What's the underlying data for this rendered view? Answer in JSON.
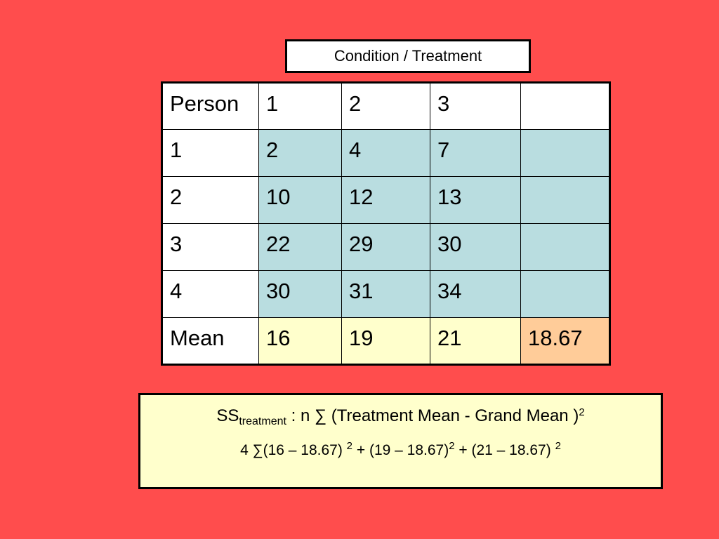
{
  "header": {
    "title": "Condition / Treatment"
  },
  "table": {
    "rows": [
      [
        "Person",
        "1",
        "2",
        "3",
        ""
      ],
      [
        "1",
        "2",
        "4",
        "7",
        ""
      ],
      [
        "2",
        "10",
        "12",
        "13",
        ""
      ],
      [
        "3",
        "22",
        "29",
        "30",
        ""
      ],
      [
        "4",
        "30",
        "31",
        "34",
        ""
      ],
      [
        "Mean",
        "16",
        "19",
        "21",
        "18.67"
      ]
    ]
  },
  "colors": {
    "background": "#ff4d4d",
    "header_cell": "#ffffff",
    "data_cell": "#b9dde0",
    "mean_cell": "#ffffcc",
    "grand_mean_cell": "#ffcc99",
    "formula_box": "#ffffcc"
  },
  "formula": {
    "ss": "SS",
    "sub": "treatment",
    "line1_text": " :   n ∑ (Treatment Mean - Grand  Mean )",
    "line1_sup": "2",
    "line2": {
      "part1": "4 ∑(16 – 18.67) ",
      "sup1": "2",
      "part2": " + (19 – 18.67)",
      "sup2": "2",
      "part3": " + (21 – 18.67) ",
      "sup3": "2"
    }
  }
}
